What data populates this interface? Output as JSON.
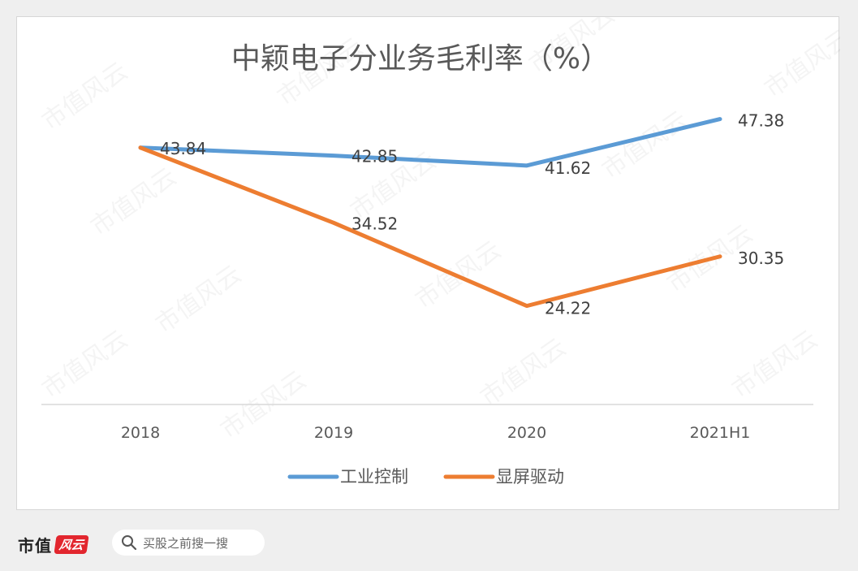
{
  "chart_data": {
    "type": "line",
    "title": "中颖电子分业务毛利率（%）",
    "categories": [
      "2018",
      "2019",
      "2020",
      "2021H1"
    ],
    "series": [
      {
        "name": "工业控制",
        "values": [
          43.84,
          42.85,
          41.62,
          47.38
        ],
        "color": "#5b9bd5"
      },
      {
        "name": "显屏驱动",
        "values": [
          43.84,
          34.52,
          24.22,
          30.35
        ],
        "color": "#ed7d31"
      }
    ],
    "ylim": [
      12,
      56
    ],
    "grid": false,
    "legend": "bottom"
  },
  "watermark": "市值风云",
  "footer": {
    "brand_main": "市值",
    "brand_seal": "风云",
    "search_placeholder": "买股之前搜一搜",
    "search_icon": "search-icon"
  }
}
